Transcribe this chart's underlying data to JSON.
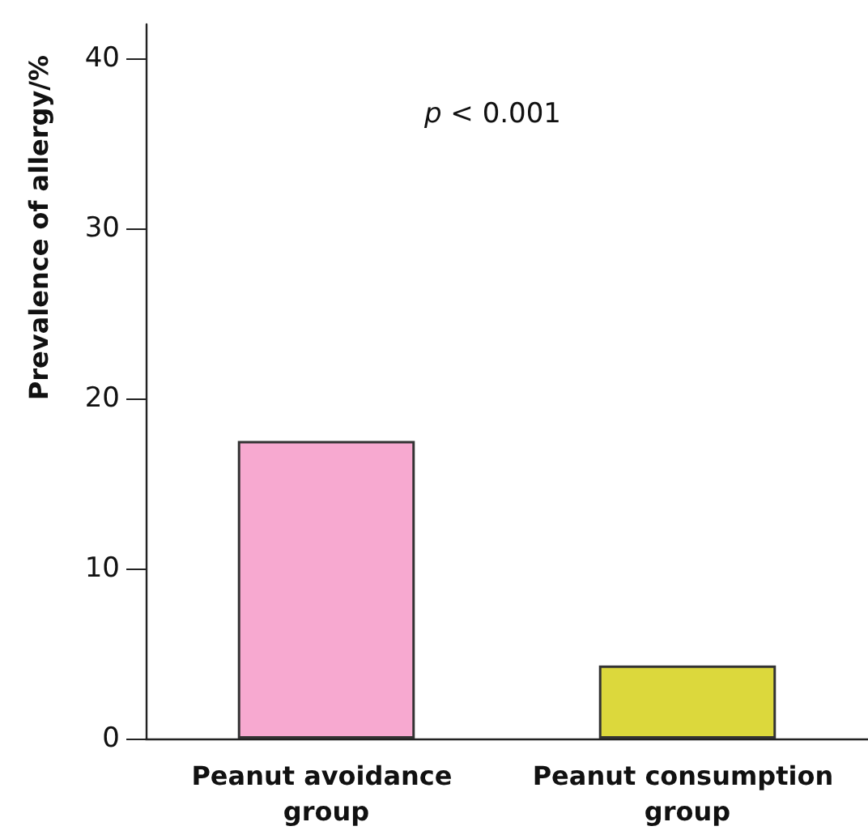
{
  "chart_data": {
    "type": "bar",
    "ylabel": "Prevalence of allergy/%",
    "categories": [
      "Peanut avoidance group",
      "Peanut consumption group"
    ],
    "values": [
      17.5,
      4.3
    ],
    "colors": [
      "#f7a9d0",
      "#dcd83c"
    ],
    "ylim": [
      0,
      42
    ],
    "yticks": [
      0,
      10,
      20,
      30,
      40
    ],
    "grid": false,
    "annotations": [
      {
        "text": "p < 0.001"
      }
    ]
  }
}
